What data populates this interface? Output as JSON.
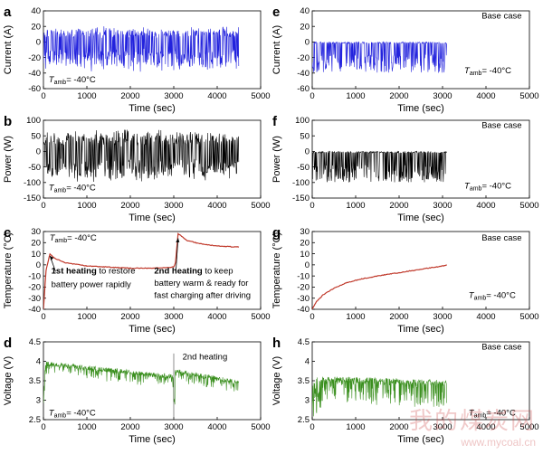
{
  "chart_data": [
    {
      "id": "a",
      "panel": "a",
      "type": "line",
      "color": "#2222dd",
      "pattern": "symmetric",
      "xlim": [
        0,
        5000
      ],
      "ylim": [
        -60,
        40
      ],
      "xticks": [
        0,
        1000,
        2000,
        3000,
        4000,
        5000
      ],
      "yticks": [
        -60,
        -40,
        -20,
        0,
        20,
        40
      ],
      "xlabel": "Time (sec)",
      "ylabel": "Current (A)",
      "data_x_range": [
        0,
        4500
      ],
      "data_y_range": [
        -40,
        22
      ],
      "notes": [
        {
          "text": "T_amb= -40°C",
          "x": 120,
          "y": -52
        }
      ]
    },
    {
      "id": "b",
      "panel": "b",
      "type": "line",
      "color": "#000000",
      "pattern": "symmetric",
      "xlim": [
        0,
        5000
      ],
      "ylim": [
        -150,
        100
      ],
      "xticks": [
        0,
        1000,
        2000,
        3000,
        4000,
        5000
      ],
      "yticks": [
        -150,
        -100,
        -50,
        0,
        50,
        100
      ],
      "xlabel": "Time (sec)",
      "ylabel": "Power (W)",
      "data_x_range": [
        0,
        4500
      ],
      "data_y_range": [
        -100,
        75
      ],
      "notes": [
        {
          "text": "T_amb= -40°C",
          "x": 120,
          "y": -125
        }
      ]
    },
    {
      "id": "c",
      "panel": "c",
      "type": "line",
      "color": "#c0392b",
      "pattern": "temp_heating",
      "xlim": [
        0,
        5000
      ],
      "ylim": [
        -40,
        30
      ],
      "xticks": [
        0,
        1000,
        2000,
        3000,
        4000,
        5000
      ],
      "yticks": [
        -40,
        -30,
        -20,
        -10,
        0,
        10,
        20,
        30
      ],
      "xlabel": "Time (sec)",
      "ylabel": "Temperature (°C)",
      "series_points": [
        [
          0,
          -40
        ],
        [
          60,
          -5
        ],
        [
          150,
          10
        ],
        [
          250,
          6
        ],
        [
          500,
          2
        ],
        [
          1000,
          -1
        ],
        [
          1500,
          -2
        ],
        [
          2000,
          -3
        ],
        [
          2500,
          -3
        ],
        [
          3000,
          -2
        ],
        [
          3040,
          2
        ],
        [
          3100,
          28
        ],
        [
          3300,
          22
        ],
        [
          3600,
          19
        ],
        [
          4000,
          17
        ],
        [
          4500,
          16
        ]
      ],
      "notes": [
        {
          "text": "T_amb= -40°C",
          "x": 140,
          "y": 22
        },
        {
          "bold": "1st heating",
          "text": " to restore",
          "x": 180,
          "y": -8
        },
        {
          "text": "battery power rapidly",
          "x": 180,
          "y": -20
        },
        {
          "bold": "2nd heating",
          "text": " to keep",
          "x": 2550,
          "y": -8
        },
        {
          "text": "battery warm & ready for",
          "x": 2550,
          "y": -19
        },
        {
          "text": "fast charging after driving",
          "x": 2550,
          "y": -30
        }
      ]
    },
    {
      "id": "d",
      "panel": "d",
      "type": "line",
      "color": "#3a8f1e",
      "pattern": "voltage",
      "xlim": [
        0,
        5000
      ],
      "ylim": [
        2.5,
        4.5
      ],
      "xticks": [
        0,
        1000,
        2000,
        3000,
        4000,
        5000
      ],
      "yticks": [
        2.5,
        3.0,
        3.5,
        4.0,
        4.5
      ],
      "xlabel": "Time (sec)",
      "ylabel": "Voltage (V)",
      "data_x_range": [
        0,
        4500
      ],
      "notes": [
        {
          "text": "2nd heating",
          "x": 3200,
          "y": 4.05
        },
        {
          "text": "T_amb= -40°C",
          "x": 120,
          "y": 2.6
        }
      ]
    },
    {
      "id": "e",
      "panel": "e",
      "type": "line",
      "color": "#2222dd",
      "pattern": "negative",
      "xlim": [
        0,
        5000
      ],
      "ylim": [
        -60,
        40
      ],
      "xticks": [
        0,
        1000,
        2000,
        3000,
        4000,
        5000
      ],
      "yticks": [
        -60,
        -40,
        -20,
        0,
        20,
        40
      ],
      "xlabel": "Time (sec)",
      "ylabel": "Current (A)",
      "data_x_range": [
        0,
        3100
      ],
      "data_y_range": [
        -40,
        0
      ],
      "notes": [
        {
          "text": "Base case",
          "x": 3900,
          "y": 30
        },
        {
          "text": "T_amb= -40°C",
          "x": 3500,
          "y": -40
        }
      ]
    },
    {
      "id": "f",
      "panel": "f",
      "type": "line",
      "color": "#000000",
      "pattern": "negative",
      "xlim": [
        0,
        5000
      ],
      "ylim": [
        -150,
        100
      ],
      "xticks": [
        0,
        1000,
        2000,
        3000,
        4000,
        5000
      ],
      "yticks": [
        -150,
        -100,
        -50,
        0,
        50,
        100
      ],
      "xlabel": "Time (sec)",
      "ylabel": "Power (W)",
      "data_x_range": [
        0,
        3100
      ],
      "data_y_range": [
        -100,
        0
      ],
      "notes": [
        {
          "text": "Base case",
          "x": 3900,
          "y": 75
        },
        {
          "text": "T_amb= -40°C",
          "x": 3500,
          "y": -120
        }
      ]
    },
    {
      "id": "g",
      "panel": "g",
      "type": "line",
      "color": "#c0392b",
      "pattern": "temp_base",
      "xlim": [
        0,
        5000
      ],
      "ylim": [
        -40,
        30
      ],
      "xticks": [
        0,
        1000,
        2000,
        3000,
        4000,
        5000
      ],
      "yticks": [
        -40,
        -30,
        -20,
        -10,
        0,
        10,
        20,
        30
      ],
      "xlabel": "Time (sec)",
      "ylabel": "Temperature (°C)",
      "series_points": [
        [
          0,
          -40
        ],
        [
          100,
          -33
        ],
        [
          250,
          -27
        ],
        [
          500,
          -21
        ],
        [
          800,
          -16
        ],
        [
          1100,
          -13
        ],
        [
          1500,
          -10
        ],
        [
          2000,
          -7
        ],
        [
          2500,
          -4
        ],
        [
          3000,
          -1
        ],
        [
          3100,
          0
        ]
      ],
      "notes": [
        {
          "text": "Base case",
          "x": 3900,
          "y": 22
        },
        {
          "text": "T_amb= -40°C",
          "x": 3600,
          "y": -30
        }
      ]
    },
    {
      "id": "h",
      "panel": "h",
      "type": "line",
      "color": "#3a8f1e",
      "pattern": "voltage_base",
      "xlim": [
        0,
        5000
      ],
      "ylim": [
        2.5,
        4.5
      ],
      "xticks": [
        0,
        1000,
        2000,
        3000,
        4000,
        5000
      ],
      "yticks": [
        2.5,
        3.0,
        3.5,
        4.0,
        4.5
      ],
      "xlabel": "Time (sec)",
      "ylabel": "Voltage (V)",
      "data_x_range": [
        0,
        3100
      ],
      "notes": [
        {
          "text": "Base case",
          "x": 3900,
          "y": 4.3
        },
        {
          "text": "T_amb= -40°C",
          "x": 3600,
          "y": 2.6
        }
      ]
    }
  ],
  "watermark": {
    "main": "我的煤炭网",
    "sub": "www.mycoal.cn"
  }
}
